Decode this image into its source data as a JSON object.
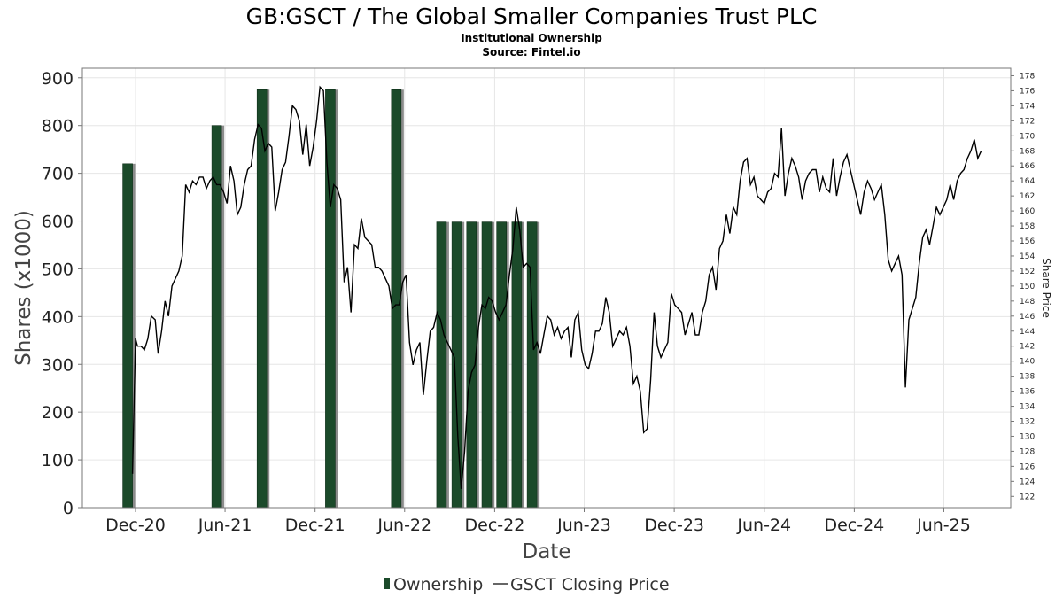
{
  "chart_data": {
    "type": "bar+line",
    "title": "GB:GSCT / The Global Smaller Companies Trust PLC",
    "subtitle": "Institutional Ownership",
    "source": "Source: Fintel.io",
    "xlabel": "Date",
    "ylabel": "Shares (x1000)",
    "y2label": "Share Price",
    "ylim": [
      0,
      920
    ],
    "y2lim": [
      120.5,
      179
    ],
    "xlim": [
      "2020-08-15",
      "2025-10-15"
    ],
    "y_ticks": [
      0,
      100,
      200,
      300,
      400,
      500,
      600,
      700,
      800,
      900
    ],
    "y2_ticks": [
      122,
      124,
      126,
      128,
      130,
      132,
      134,
      136,
      138,
      140,
      142,
      144,
      146,
      148,
      150,
      152,
      154,
      156,
      158,
      160,
      162,
      164,
      166,
      168,
      170,
      172,
      174,
      176,
      178
    ],
    "x_ticks": [
      {
        "label": "Dec-20",
        "date": "2020-12-01"
      },
      {
        "label": "Jun-21",
        "date": "2021-06-01"
      },
      {
        "label": "Dec-21",
        "date": "2021-12-01"
      },
      {
        "label": "Jun-22",
        "date": "2022-06-01"
      },
      {
        "label": "Dec-22",
        "date": "2022-12-01"
      },
      {
        "label": "Jun-23",
        "date": "2023-06-01"
      },
      {
        "label": "Dec-23",
        "date": "2023-12-01"
      },
      {
        "label": "Jun-24",
        "date": "2024-06-01"
      },
      {
        "label": "Dec-24",
        "date": "2024-12-01"
      },
      {
        "label": "Jun-25",
        "date": "2025-06-01"
      }
    ],
    "grid": true,
    "legend_position": "bottom",
    "series": [
      {
        "name": "Ownership",
        "type": "bar",
        "color": "#1b4a2a",
        "points": [
          {
            "date": "2020-11-15",
            "value": 720
          },
          {
            "date": "2021-05-15",
            "value": 800
          },
          {
            "date": "2021-08-15",
            "value": 875
          },
          {
            "date": "2022-01-01",
            "value": 875
          },
          {
            "date": "2022-05-15",
            "value": 875
          },
          {
            "date": "2022-08-15",
            "value": 598
          },
          {
            "date": "2022-09-15",
            "value": 598
          },
          {
            "date": "2022-10-15",
            "value": 598
          },
          {
            "date": "2022-11-15",
            "value": 598
          },
          {
            "date": "2022-12-15",
            "value": 598
          },
          {
            "date": "2023-01-15",
            "value": 598
          },
          {
            "date": "2023-02-15",
            "value": 598
          }
        ]
      },
      {
        "name": "GSCT Closing Price",
        "type": "line",
        "axis": "right",
        "color": "#000000",
        "points": [
          [
            "2020-11-25",
            125
          ],
          [
            "2020-12-01",
            143
          ],
          [
            "2020-12-05",
            142
          ],
          [
            "2020-12-12",
            142
          ],
          [
            "2020-12-19",
            141.5
          ],
          [
            "2020-12-26",
            143
          ],
          [
            "2021-01-02",
            146
          ],
          [
            "2021-01-10",
            145.5
          ],
          [
            "2021-01-16",
            141
          ],
          [
            "2021-01-23",
            144
          ],
          [
            "2021-01-30",
            148
          ],
          [
            "2021-02-06",
            146
          ],
          [
            "2021-02-13",
            150
          ],
          [
            "2021-02-20",
            151
          ],
          [
            "2021-02-27",
            152
          ],
          [
            "2021-03-06",
            154
          ],
          [
            "2021-03-13",
            163.5
          ],
          [
            "2021-03-20",
            162.5
          ],
          [
            "2021-03-27",
            164
          ],
          [
            "2021-04-03",
            163.5
          ],
          [
            "2021-04-10",
            164.5
          ],
          [
            "2021-04-17",
            164.5
          ],
          [
            "2021-04-24",
            163
          ],
          [
            "2021-05-01",
            164
          ],
          [
            "2021-05-08",
            164.5
          ],
          [
            "2021-05-15",
            163.5
          ],
          [
            "2021-05-22",
            163.5
          ],
          [
            "2021-05-29",
            162.5
          ],
          [
            "2021-06-05",
            161
          ],
          [
            "2021-06-12",
            166
          ],
          [
            "2021-06-19",
            164
          ],
          [
            "2021-06-26",
            159.5
          ],
          [
            "2021-07-03",
            160.5
          ],
          [
            "2021-07-10",
            163.5
          ],
          [
            "2021-07-17",
            165.5
          ],
          [
            "2021-07-24",
            166
          ],
          [
            "2021-07-31",
            169.5
          ],
          [
            "2021-08-07",
            171.5
          ],
          [
            "2021-08-14",
            171
          ],
          [
            "2021-08-21",
            168
          ],
          [
            "2021-08-28",
            169
          ],
          [
            "2021-09-04",
            168.5
          ],
          [
            "2021-09-11",
            160
          ],
          [
            "2021-09-18",
            162.5
          ],
          [
            "2021-09-25",
            165.5
          ],
          [
            "2021-10-02",
            166.5
          ],
          [
            "2021-10-09",
            170
          ],
          [
            "2021-10-16",
            174
          ],
          [
            "2021-10-23",
            173.5
          ],
          [
            "2021-10-30",
            172
          ],
          [
            "2021-11-06",
            167.5
          ],
          [
            "2021-11-13",
            171.5
          ],
          [
            "2021-11-20",
            166
          ],
          [
            "2021-11-27",
            168.5
          ],
          [
            "2021-12-04",
            172
          ],
          [
            "2021-12-11",
            176.5
          ],
          [
            "2021-12-18",
            176
          ],
          [
            "2021-12-25",
            166.5
          ],
          [
            "2022-01-01",
            160.5
          ],
          [
            "2022-01-08",
            163.5
          ],
          [
            "2022-01-15",
            163
          ],
          [
            "2022-01-22",
            161.5
          ],
          [
            "2022-01-29",
            150.5
          ],
          [
            "2022-02-05",
            152.5
          ],
          [
            "2022-02-12",
            146.5
          ],
          [
            "2022-02-19",
            155.5
          ],
          [
            "2022-02-26",
            155
          ],
          [
            "2022-03-05",
            159
          ],
          [
            "2022-03-12",
            156.5
          ],
          [
            "2022-03-19",
            156
          ],
          [
            "2022-03-26",
            155.5
          ],
          [
            "2022-04-02",
            152.5
          ],
          [
            "2022-04-09",
            152.5
          ],
          [
            "2022-04-16",
            152
          ],
          [
            "2022-04-23",
            151
          ],
          [
            "2022-04-30",
            150
          ],
          [
            "2022-05-07",
            147
          ],
          [
            "2022-05-14",
            147.5
          ],
          [
            "2022-05-21",
            147.5
          ],
          [
            "2022-05-28",
            150.5
          ],
          [
            "2022-06-04",
            151.5
          ],
          [
            "2022-06-11",
            142.5
          ],
          [
            "2022-06-18",
            139.5
          ],
          [
            "2022-06-25",
            141.5
          ],
          [
            "2022-07-02",
            142.5
          ],
          [
            "2022-07-09",
            135.5
          ],
          [
            "2022-07-16",
            140
          ],
          [
            "2022-07-23",
            144
          ],
          [
            "2022-07-30",
            144.5
          ],
          [
            "2022-08-06",
            146.5
          ],
          [
            "2022-08-13",
            145.5
          ],
          [
            "2022-08-20",
            143.5
          ],
          [
            "2022-08-27",
            142.5
          ],
          [
            "2022-09-03",
            141.5
          ],
          [
            "2022-09-10",
            140.5
          ],
          [
            "2022-09-17",
            130
          ],
          [
            "2022-09-24",
            123
          ],
          [
            "2022-10-01",
            128
          ],
          [
            "2022-10-08",
            136
          ],
          [
            "2022-10-15",
            138.5
          ],
          [
            "2022-10-22",
            139.5
          ],
          [
            "2022-10-29",
            144.5
          ],
          [
            "2022-11-05",
            147.5
          ],
          [
            "2022-11-12",
            147
          ],
          [
            "2022-11-19",
            148.5
          ],
          [
            "2022-11-26",
            148
          ],
          [
            "2022-12-03",
            146.5
          ],
          [
            "2022-12-10",
            145.5
          ],
          [
            "2022-12-17",
            146.5
          ],
          [
            "2022-12-24",
            147.5
          ],
          [
            "2022-12-31",
            151.5
          ],
          [
            "2023-01-07",
            155
          ],
          [
            "2023-01-14",
            160.5
          ],
          [
            "2023-01-21",
            157.5
          ],
          [
            "2023-01-28",
            152.5
          ],
          [
            "2023-02-04",
            153
          ],
          [
            "2023-02-11",
            152.5
          ],
          [
            "2023-02-18",
            141.5
          ],
          [
            "2023-02-25",
            142.5
          ],
          [
            "2023-03-04",
            141
          ],
          [
            "2023-03-11",
            143.5
          ],
          [
            "2023-03-18",
            146
          ],
          [
            "2023-03-25",
            145.5
          ],
          [
            "2023-04-01",
            143.5
          ],
          [
            "2023-04-08",
            144.5
          ],
          [
            "2023-04-15",
            143
          ],
          [
            "2023-04-22",
            144
          ],
          [
            "2023-04-29",
            144.5
          ],
          [
            "2023-05-06",
            140.5
          ],
          [
            "2023-05-13",
            145.5
          ],
          [
            "2023-05-20",
            146.5
          ],
          [
            "2023-05-27",
            141.5
          ],
          [
            "2023-06-03",
            139.5
          ],
          [
            "2023-06-10",
            139
          ],
          [
            "2023-06-17",
            141
          ],
          [
            "2023-06-24",
            144
          ],
          [
            "2023-07-01",
            144
          ],
          [
            "2023-07-08",
            145
          ],
          [
            "2023-07-15",
            148.5
          ],
          [
            "2023-07-22",
            146.5
          ],
          [
            "2023-07-29",
            142
          ],
          [
            "2023-08-05",
            143
          ],
          [
            "2023-08-12",
            144
          ],
          [
            "2023-08-19",
            143.5
          ],
          [
            "2023-08-26",
            144.5
          ],
          [
            "2023-09-02",
            142
          ],
          [
            "2023-09-09",
            137
          ],
          [
            "2023-09-16",
            138
          ],
          [
            "2023-09-23",
            136
          ],
          [
            "2023-09-30",
            130.5
          ],
          [
            "2023-10-07",
            131
          ],
          [
            "2023-10-14",
            137.5
          ],
          [
            "2023-10-21",
            146.5
          ],
          [
            "2023-10-28",
            142
          ],
          [
            "2023-11-04",
            140.5
          ],
          [
            "2023-11-11",
            141.5
          ],
          [
            "2023-11-18",
            142.5
          ],
          [
            "2023-11-25",
            149
          ],
          [
            "2023-12-02",
            147.5
          ],
          [
            "2023-12-09",
            147
          ],
          [
            "2023-12-16",
            146.5
          ],
          [
            "2023-12-23",
            143.5
          ],
          [
            "2023-12-30",
            145
          ],
          [
            "2024-01-06",
            146.5
          ],
          [
            "2024-01-13",
            143.5
          ],
          [
            "2024-01-20",
            143.5
          ],
          [
            "2024-01-27",
            146.5
          ],
          [
            "2024-02-03",
            148
          ],
          [
            "2024-02-10",
            151.5
          ],
          [
            "2024-02-17",
            152.5
          ],
          [
            "2024-02-24",
            149.5
          ],
          [
            "2024-03-02",
            155
          ],
          [
            "2024-03-09",
            156
          ],
          [
            "2024-03-16",
            159.5
          ],
          [
            "2024-03-23",
            157
          ],
          [
            "2024-03-30",
            160.5
          ],
          [
            "2024-04-06",
            159.5
          ],
          [
            "2024-04-13",
            164
          ],
          [
            "2024-04-20",
            166.5
          ],
          [
            "2024-04-27",
            167
          ],
          [
            "2024-05-04",
            163.5
          ],
          [
            "2024-05-11",
            164.5
          ],
          [
            "2024-05-18",
            162
          ],
          [
            "2024-05-25",
            161.5
          ],
          [
            "2024-06-01",
            161
          ],
          [
            "2024-06-08",
            162.5
          ],
          [
            "2024-06-15",
            163
          ],
          [
            "2024-06-22",
            165
          ],
          [
            "2024-06-29",
            164.5
          ],
          [
            "2024-07-06",
            171
          ],
          [
            "2024-07-13",
            162
          ],
          [
            "2024-07-20",
            165
          ],
          [
            "2024-07-27",
            167
          ],
          [
            "2024-08-03",
            166
          ],
          [
            "2024-08-10",
            164.5
          ],
          [
            "2024-08-17",
            161.5
          ],
          [
            "2024-08-24",
            164
          ],
          [
            "2024-08-31",
            165
          ],
          [
            "2024-09-07",
            165.5
          ],
          [
            "2024-09-14",
            165.5
          ],
          [
            "2024-09-21",
            162.5
          ],
          [
            "2024-09-28",
            164.5
          ],
          [
            "2024-10-05",
            163
          ],
          [
            "2024-10-12",
            162.5
          ],
          [
            "2024-10-19",
            167
          ],
          [
            "2024-10-26",
            162
          ],
          [
            "2024-11-02",
            164.5
          ],
          [
            "2024-11-09",
            166.5
          ],
          [
            "2024-11-16",
            167.5
          ],
          [
            "2024-11-23",
            165.5
          ],
          [
            "2024-11-30",
            163.5
          ],
          [
            "2024-12-07",
            161.5
          ],
          [
            "2024-12-14",
            159.5
          ],
          [
            "2024-12-21",
            162.5
          ],
          [
            "2024-12-28",
            164
          ],
          [
            "2025-01-04",
            163
          ],
          [
            "2025-01-11",
            161.5
          ],
          [
            "2025-01-18",
            162.5
          ],
          [
            "2025-01-25",
            163.5
          ],
          [
            "2025-02-01",
            159.5
          ],
          [
            "2025-02-08",
            153.5
          ],
          [
            "2025-02-15",
            152
          ],
          [
            "2025-02-22",
            153
          ],
          [
            "2025-03-01",
            154
          ],
          [
            "2025-03-08",
            151.5
          ],
          [
            "2025-03-15",
            136.5
          ],
          [
            "2025-03-22",
            145.5
          ],
          [
            "2025-03-29",
            147
          ],
          [
            "2025-04-05",
            148.5
          ],
          [
            "2025-04-12",
            153
          ],
          [
            "2025-04-19",
            156.5
          ],
          [
            "2025-04-26",
            157.5
          ],
          [
            "2025-05-03",
            155.5
          ],
          [
            "2025-05-10",
            158
          ],
          [
            "2025-05-17",
            160.5
          ],
          [
            "2025-05-24",
            159.5
          ],
          [
            "2025-05-31",
            160.5
          ],
          [
            "2025-06-07",
            161.5
          ],
          [
            "2025-06-14",
            163.5
          ],
          [
            "2025-06-21",
            161.5
          ],
          [
            "2025-06-28",
            164
          ],
          [
            "2025-07-05",
            165
          ],
          [
            "2025-07-12",
            165.5
          ],
          [
            "2025-07-19",
            167
          ],
          [
            "2025-07-26",
            168
          ],
          [
            "2025-08-02",
            169.5
          ],
          [
            "2025-08-09",
            167
          ],
          [
            "2025-08-16",
            168
          ]
        ]
      }
    ]
  }
}
